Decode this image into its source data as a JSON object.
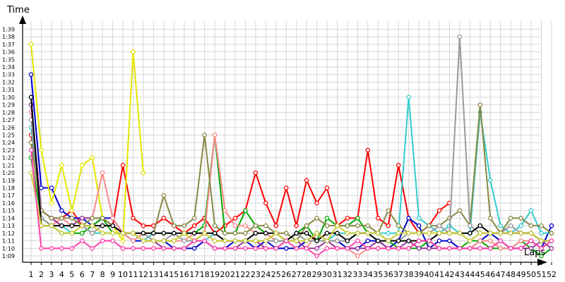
{
  "chart_data": {
    "type": "line",
    "ylabel": "Time",
    "xlabel": "Laps",
    "x": [
      1,
      2,
      3,
      4,
      5,
      6,
      7,
      8,
      9,
      10,
      11,
      12,
      13,
      14,
      15,
      16,
      17,
      18,
      19,
      20,
      21,
      22,
      23,
      24,
      25,
      26,
      27,
      28,
      29,
      30,
      31,
      32,
      33,
      34,
      35,
      36,
      37,
      38,
      39,
      40,
      41,
      42,
      43,
      44,
      45,
      46,
      47,
      48,
      49,
      50,
      51,
      52
    ],
    "y_ticks": [
      "1:09",
      "1:10",
      "1:11",
      "1:12",
      "1:13",
      "1:14",
      "1:15",
      "1:16",
      "1:17",
      "1:18",
      "1:19",
      "1:20",
      "1:21",
      "1:22",
      "1:23",
      "1:24",
      "1:25",
      "1:26",
      "1:27",
      "1:28",
      "1:29",
      "1:30",
      "1:31",
      "1:32",
      "1:33",
      "1:34",
      "1:35",
      "1:36",
      "1:37",
      "1:38",
      "1:39"
    ],
    "ylim": [
      68,
      100
    ],
    "grid": true,
    "series": [
      {
        "color": "#ff0000",
        "values": [
          85,
          75,
          74,
          74,
          75,
          73,
          73,
          74,
          73,
          81,
          74,
          73,
          73,
          74,
          73,
          72,
          73,
          74,
          72,
          73,
          74,
          75,
          80,
          76,
          73,
          78,
          73,
          79,
          76,
          78,
          73,
          74,
          74,
          83,
          74,
          73,
          81,
          74,
          72,
          73,
          75,
          76,
          null,
          null,
          null,
          null,
          null,
          null,
          null,
          null,
          null,
          null
        ]
      },
      {
        "color": "#0000cc",
        "values": [
          93,
          78,
          78,
          75,
          74,
          74,
          73,
          74,
          74,
          72,
          71,
          71,
          71,
          71,
          70,
          70,
          70,
          71,
          70,
          70,
          71,
          71,
          70,
          71,
          70,
          70,
          70,
          71,
          72,
          71,
          71,
          70,
          70,
          71,
          71,
          70,
          71,
          74,
          73,
          70,
          71,
          71,
          70,
          70,
          71,
          72,
          71,
          70,
          70,
          71,
          70,
          73
        ]
      },
      {
        "color": "#00aa00",
        "values": [
          82,
          74,
          73,
          72,
          72,
          72,
          73,
          74,
          72,
          72,
          72,
          71,
          71,
          71,
          71,
          72,
          72,
          73,
          85,
          72,
          72,
          75,
          73,
          72,
          71,
          71,
          72,
          73,
          71,
          74,
          73,
          73,
          74,
          72,
          72,
          71,
          70,
          70,
          70,
          71,
          70,
          70,
          70,
          71,
          71,
          70,
          70,
          70,
          71,
          70,
          69,
          70
        ]
      },
      {
        "color": "#e6e600",
        "values": [
          97,
          83,
          76,
          81,
          75,
          81,
          82,
          74,
          73,
          71,
          96,
          80,
          null,
          null,
          null,
          null,
          null,
          null,
          null,
          null,
          null,
          null,
          null,
          null,
          null,
          null,
          null,
          null,
          null,
          null,
          null,
          null,
          null,
          null,
          null,
          null,
          null,
          null,
          null,
          null,
          null,
          null,
          null,
          null,
          null,
          null,
          null,
          null,
          null,
          null,
          null,
          null
        ]
      },
      {
        "color": "#ff8888",
        "values": [
          88,
          74,
          73,
          74,
          73,
          74,
          74,
          80,
          74,
          72,
          71,
          72,
          71,
          71,
          71,
          71,
          72,
          72,
          85,
          75,
          73,
          73,
          72,
          72,
          71,
          71,
          70,
          70,
          72,
          71,
          70,
          70,
          69,
          70,
          70,
          70,
          70,
          70,
          71,
          71,
          70,
          70,
          70,
          70,
          71,
          71,
          70,
          70,
          71,
          71,
          70,
          71
        ]
      },
      {
        "color": "#993399",
        "values": [
          89,
          75,
          74,
          73,
          73,
          74,
          74,
          74,
          73,
          72,
          72,
          71,
          71,
          70,
          70,
          70,
          71,
          71,
          70,
          70,
          70,
          71,
          71,
          70,
          70,
          71,
          71,
          70,
          70,
          71,
          70,
          70,
          70,
          70,
          71,
          70,
          70,
          71,
          70,
          70,
          70,
          70,
          70,
          70,
          70,
          70,
          71,
          70,
          70,
          70,
          71,
          70
        ]
      },
      {
        "color": "#33cccc",
        "values": [
          86,
          74,
          73,
          73,
          72,
          73,
          72,
          72,
          72,
          72,
          72,
          71,
          72,
          72,
          72,
          71,
          71,
          71,
          72,
          71,
          71,
          71,
          71,
          71,
          71,
          71,
          72,
          71,
          71,
          71,
          72,
          72,
          72,
          72,
          72,
          72,
          72,
          90,
          74,
          73,
          72,
          73,
          72,
          72,
          88,
          79,
          73,
          72,
          73,
          75,
          72,
          72
        ]
      },
      {
        "color": "#888844",
        "values": [
          84,
          75,
          74,
          74,
          74,
          73,
          74,
          74,
          73,
          72,
          72,
          72,
          72,
          77,
          73,
          73,
          74,
          85,
          73,
          72,
          72,
          72,
          73,
          73,
          72,
          72,
          71,
          73,
          74,
          73,
          73,
          73,
          73,
          73,
          72,
          75,
          73,
          72,
          72,
          73,
          73,
          74,
          75,
          73,
          89,
          74,
          72,
          74,
          74,
          73,
          73,
          72
        ]
      },
      {
        "color": "#999999",
        "values": [
          87,
          74,
          73,
          73,
          73,
          73,
          72,
          73,
          73,
          72,
          72,
          72,
          71,
          71,
          72,
          71,
          71,
          72,
          71,
          71,
          71,
          71,
          71,
          71,
          71,
          71,
          72,
          71,
          71,
          71,
          71,
          71,
          72,
          72,
          71,
          71,
          71,
          72,
          72,
          72,
          73,
          72,
          98,
          73,
          72,
          72,
          72,
          73,
          72,
          72,
          71,
          71
        ]
      },
      {
        "color": "#000000",
        "values": [
          90,
          73,
          73,
          73,
          73,
          73,
          73,
          73,
          73,
          72,
          72,
          72,
          72,
          72,
          72,
          72,
          72,
          72,
          72,
          71,
          71,
          71,
          72,
          72,
          72,
          71,
          72,
          72,
          71,
          72,
          72,
          71,
          72,
          72,
          71,
          71,
          71,
          71,
          71,
          71,
          72,
          72,
          72,
          72,
          73,
          72,
          72,
          72,
          72,
          72,
          71,
          71
        ]
      },
      {
        "color": "#cccc33",
        "values": [
          80,
          73,
          73,
          72,
          72,
          73,
          73,
          72,
          72,
          72,
          72,
          71,
          71,
          71,
          71,
          72,
          71,
          72,
          71,
          71,
          71,
          71,
          71,
          71,
          72,
          71,
          71,
          71,
          72,
          71,
          73,
          72,
          72,
          72,
          72,
          71,
          72,
          72,
          72,
          72,
          72,
          72,
          72,
          71,
          72,
          72,
          72,
          72,
          72,
          72,
          71,
          71
        ]
      },
      {
        "color": "#ff44aa",
        "values": [
          83,
          70,
          70,
          70,
          70,
          71,
          70,
          71,
          71,
          70,
          70,
          70,
          70,
          70,
          70,
          70,
          71,
          71,
          70,
          70,
          70,
          70,
          70,
          70,
          70,
          71,
          70,
          70,
          69,
          70,
          70,
          70,
          71,
          70,
          70,
          70,
          70,
          70,
          71,
          71,
          70,
          70,
          70,
          70,
          70,
          70,
          71,
          70,
          70,
          71,
          70,
          71
        ]
      }
    ]
  }
}
